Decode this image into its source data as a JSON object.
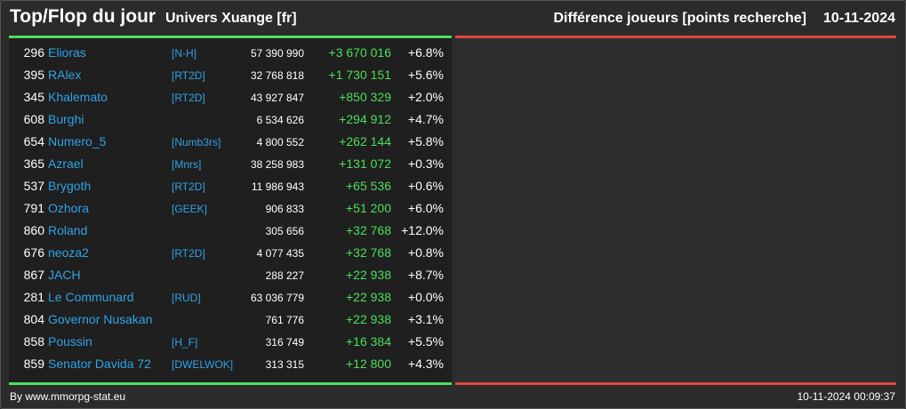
{
  "header": {
    "title": "Top/Flop du jour",
    "universe": "Univers Xuange [fr]",
    "subtitle": "Différence joueurs [points recherche]",
    "date": "10-11-2024"
  },
  "colors": {
    "top_accent": "#4cde5a",
    "flop_accent": "#e0473f",
    "link": "#2fa3e6",
    "positive": "#4cde5a"
  },
  "top": [
    {
      "rank": "296",
      "name": "Elioras",
      "alliance": "[N-H]",
      "points": "57 390 990",
      "diff": "+3 670 016",
      "pct": "+6.8%"
    },
    {
      "rank": "395",
      "name": "RAlex",
      "alliance": "[RT2D]",
      "points": "32 768 818",
      "diff": "+1 730 151",
      "pct": "+5.6%"
    },
    {
      "rank": "345",
      "name": "Khalemato",
      "alliance": "[RT2D]",
      "points": "43 927 847",
      "diff": "+850 329",
      "pct": "+2.0%"
    },
    {
      "rank": "608",
      "name": "Burghi",
      "alliance": "",
      "points": "6 534 626",
      "diff": "+294 912",
      "pct": "+4.7%"
    },
    {
      "rank": "654",
      "name": "Numero_5",
      "alliance": "[Numb3rs]",
      "points": "4 800 552",
      "diff": "+262 144",
      "pct": "+5.8%"
    },
    {
      "rank": "365",
      "name": "Azrael",
      "alliance": "[Mnrs]",
      "points": "38 258 983",
      "diff": "+131 072",
      "pct": "+0.3%"
    },
    {
      "rank": "537",
      "name": "Brygoth",
      "alliance": "[RT2D]",
      "points": "11 986 943",
      "diff": "+65 536",
      "pct": "+0.6%"
    },
    {
      "rank": "791",
      "name": "Ozhora",
      "alliance": "[GEEK]",
      "points": "906 833",
      "diff": "+51 200",
      "pct": "+6.0%"
    },
    {
      "rank": "860",
      "name": "Roland",
      "alliance": "",
      "points": "305 656",
      "diff": "+32 768",
      "pct": "+12.0%"
    },
    {
      "rank": "676",
      "name": "neoza2",
      "alliance": "[RT2D]",
      "points": "4 077 435",
      "diff": "+32 768",
      "pct": "+0.8%"
    },
    {
      "rank": "867",
      "name": "JACH",
      "alliance": "",
      "points": "288 227",
      "diff": "+22 938",
      "pct": "+8.7%"
    },
    {
      "rank": "281",
      "name": "Le Communard",
      "alliance": "[RUD]",
      "points": "63 036 779",
      "diff": "+22 938",
      "pct": "+0.0%"
    },
    {
      "rank": "804",
      "name": "Governor Nusakan",
      "alliance": "",
      "points": "761 776",
      "diff": "+22 938",
      "pct": "+3.1%"
    },
    {
      "rank": "858",
      "name": "Poussin",
      "alliance": "[H_F]",
      "points": "316 749",
      "diff": "+16 384",
      "pct": "+5.5%"
    },
    {
      "rank": "859",
      "name": "Senator Davida 72",
      "alliance": "[DWELWOK]",
      "points": "313 315",
      "diff": "+12 800",
      "pct": "+4.3%"
    }
  ],
  "flop": [],
  "footer": {
    "credit": "By www.mmorpg-stat.eu",
    "timestamp": "10-11-2024 00:09:37"
  }
}
